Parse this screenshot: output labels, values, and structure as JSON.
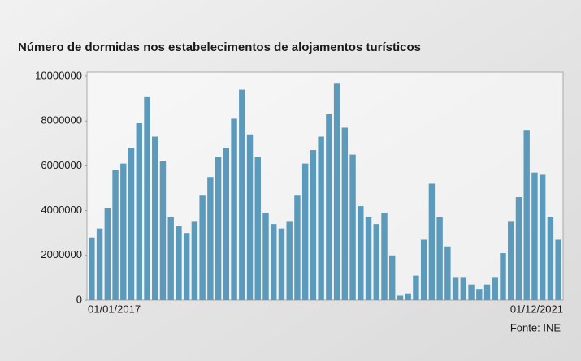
{
  "chart_data": {
    "type": "bar",
    "title": "Número de dormidas nos estabelecimentos de alojamentos turísticos",
    "source": "Fonte: INE",
    "categories": [
      "01/01/2017",
      null,
      null,
      null,
      null,
      null,
      null,
      null,
      null,
      null,
      null,
      null,
      null,
      null,
      null,
      null,
      null,
      null,
      null,
      null,
      null,
      null,
      null,
      null,
      null,
      null,
      null,
      null,
      null,
      null,
      null,
      null,
      null,
      null,
      null,
      null,
      null,
      null,
      null,
      null,
      null,
      null,
      null,
      null,
      null,
      null,
      null,
      null,
      null,
      null,
      null,
      null,
      null,
      null,
      null,
      null,
      null,
      null,
      null,
      "01/12/2021"
    ],
    "values": [
      2800000,
      3200000,
      4100000,
      5800000,
      6100000,
      6800000,
      7900000,
      9100000,
      7300000,
      6200000,
      3700000,
      3300000,
      3000000,
      3500000,
      4700000,
      5500000,
      6400000,
      6800000,
      8100000,
      9400000,
      7400000,
      6400000,
      3900000,
      3400000,
      3200000,
      3500000,
      4700000,
      6100000,
      6700000,
      7300000,
      8300000,
      9700000,
      7700000,
      6500000,
      4200000,
      3700000,
      3400000,
      3900000,
      2000000,
      200000,
      300000,
      1100000,
      2700000,
      5200000,
      3700000,
      2400000,
      1000000,
      1000000,
      700000,
      500000,
      700000,
      1000000,
      2100000,
      3500000,
      4600000,
      7600000,
      5700000,
      5600000,
      3700000,
      2700000
    ],
    "color": "#5b9aba",
    "ylim": [
      0,
      10000000
    ],
    "yticks": [
      0,
      2000000,
      4000000,
      6000000,
      8000000,
      10000000
    ]
  }
}
